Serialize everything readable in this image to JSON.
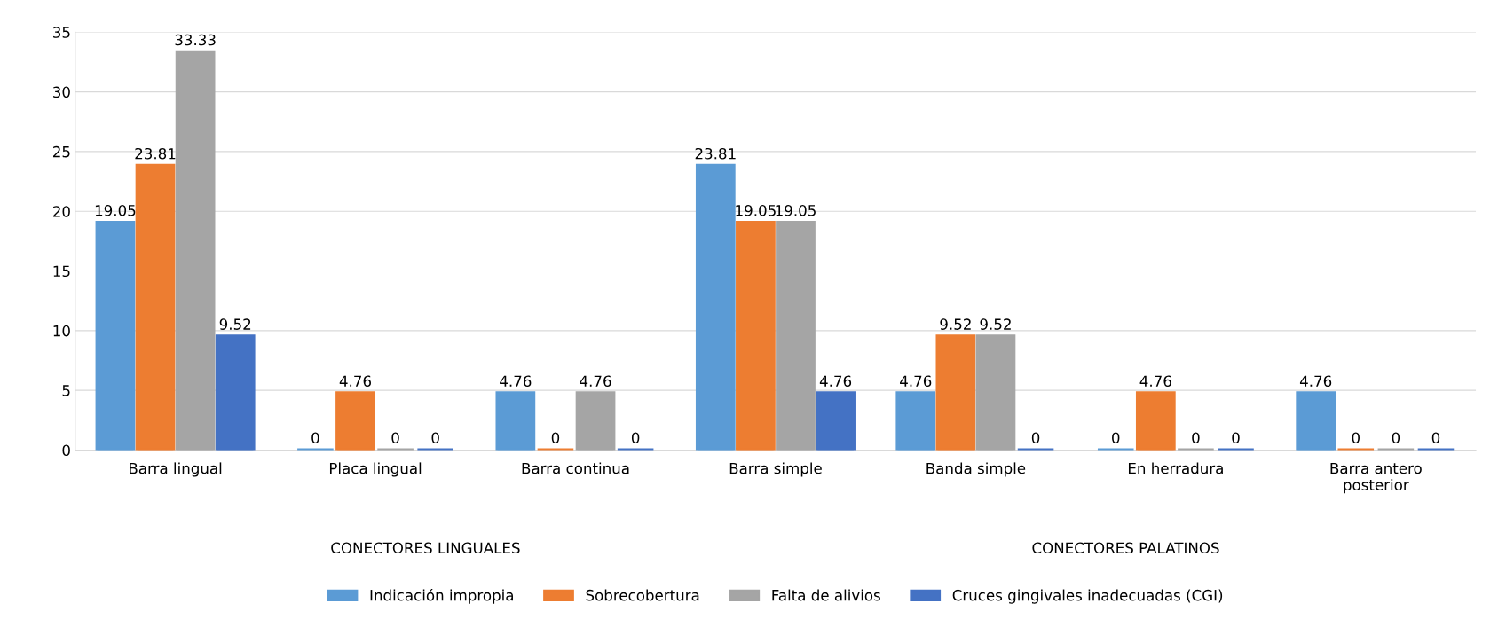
{
  "chart_data": {
    "type": "bar",
    "categories": [
      "Barra lingual",
      "Placa lingual",
      "Barra continua",
      "Barra simple",
      "Banda simple",
      "En herradura",
      "Barra antero\nposterior"
    ],
    "series": [
      {
        "name": "Indicación impropia",
        "color": "#5b9bd5",
        "values": [
          19.05,
          0,
          4.76,
          23.81,
          4.76,
          0,
          4.76
        ]
      },
      {
        "name": "Sobrecobertura",
        "color": "#ed7d31",
        "values": [
          23.81,
          4.76,
          0,
          19.05,
          9.52,
          4.76,
          0
        ]
      },
      {
        "name": "Falta de alivios",
        "color": "#a5a5a5",
        "values": [
          33.33,
          0,
          4.76,
          19.05,
          9.52,
          0,
          0
        ]
      },
      {
        "name": "Cruces gingivales inadecuadas (CGI)",
        "color": "#4472c4",
        "values": [
          9.52,
          0,
          0,
          4.76,
          0,
          0,
          0
        ]
      }
    ],
    "annotations": [
      "CONECTORES LINGUALES",
      "CONECTORES PALATINOS"
    ],
    "ylim": [
      0,
      35
    ],
    "yticks": [
      0,
      5,
      10,
      15,
      20,
      25,
      30,
      35
    ],
    "grid": "y",
    "legend": "bottom",
    "data_labels": true
  }
}
